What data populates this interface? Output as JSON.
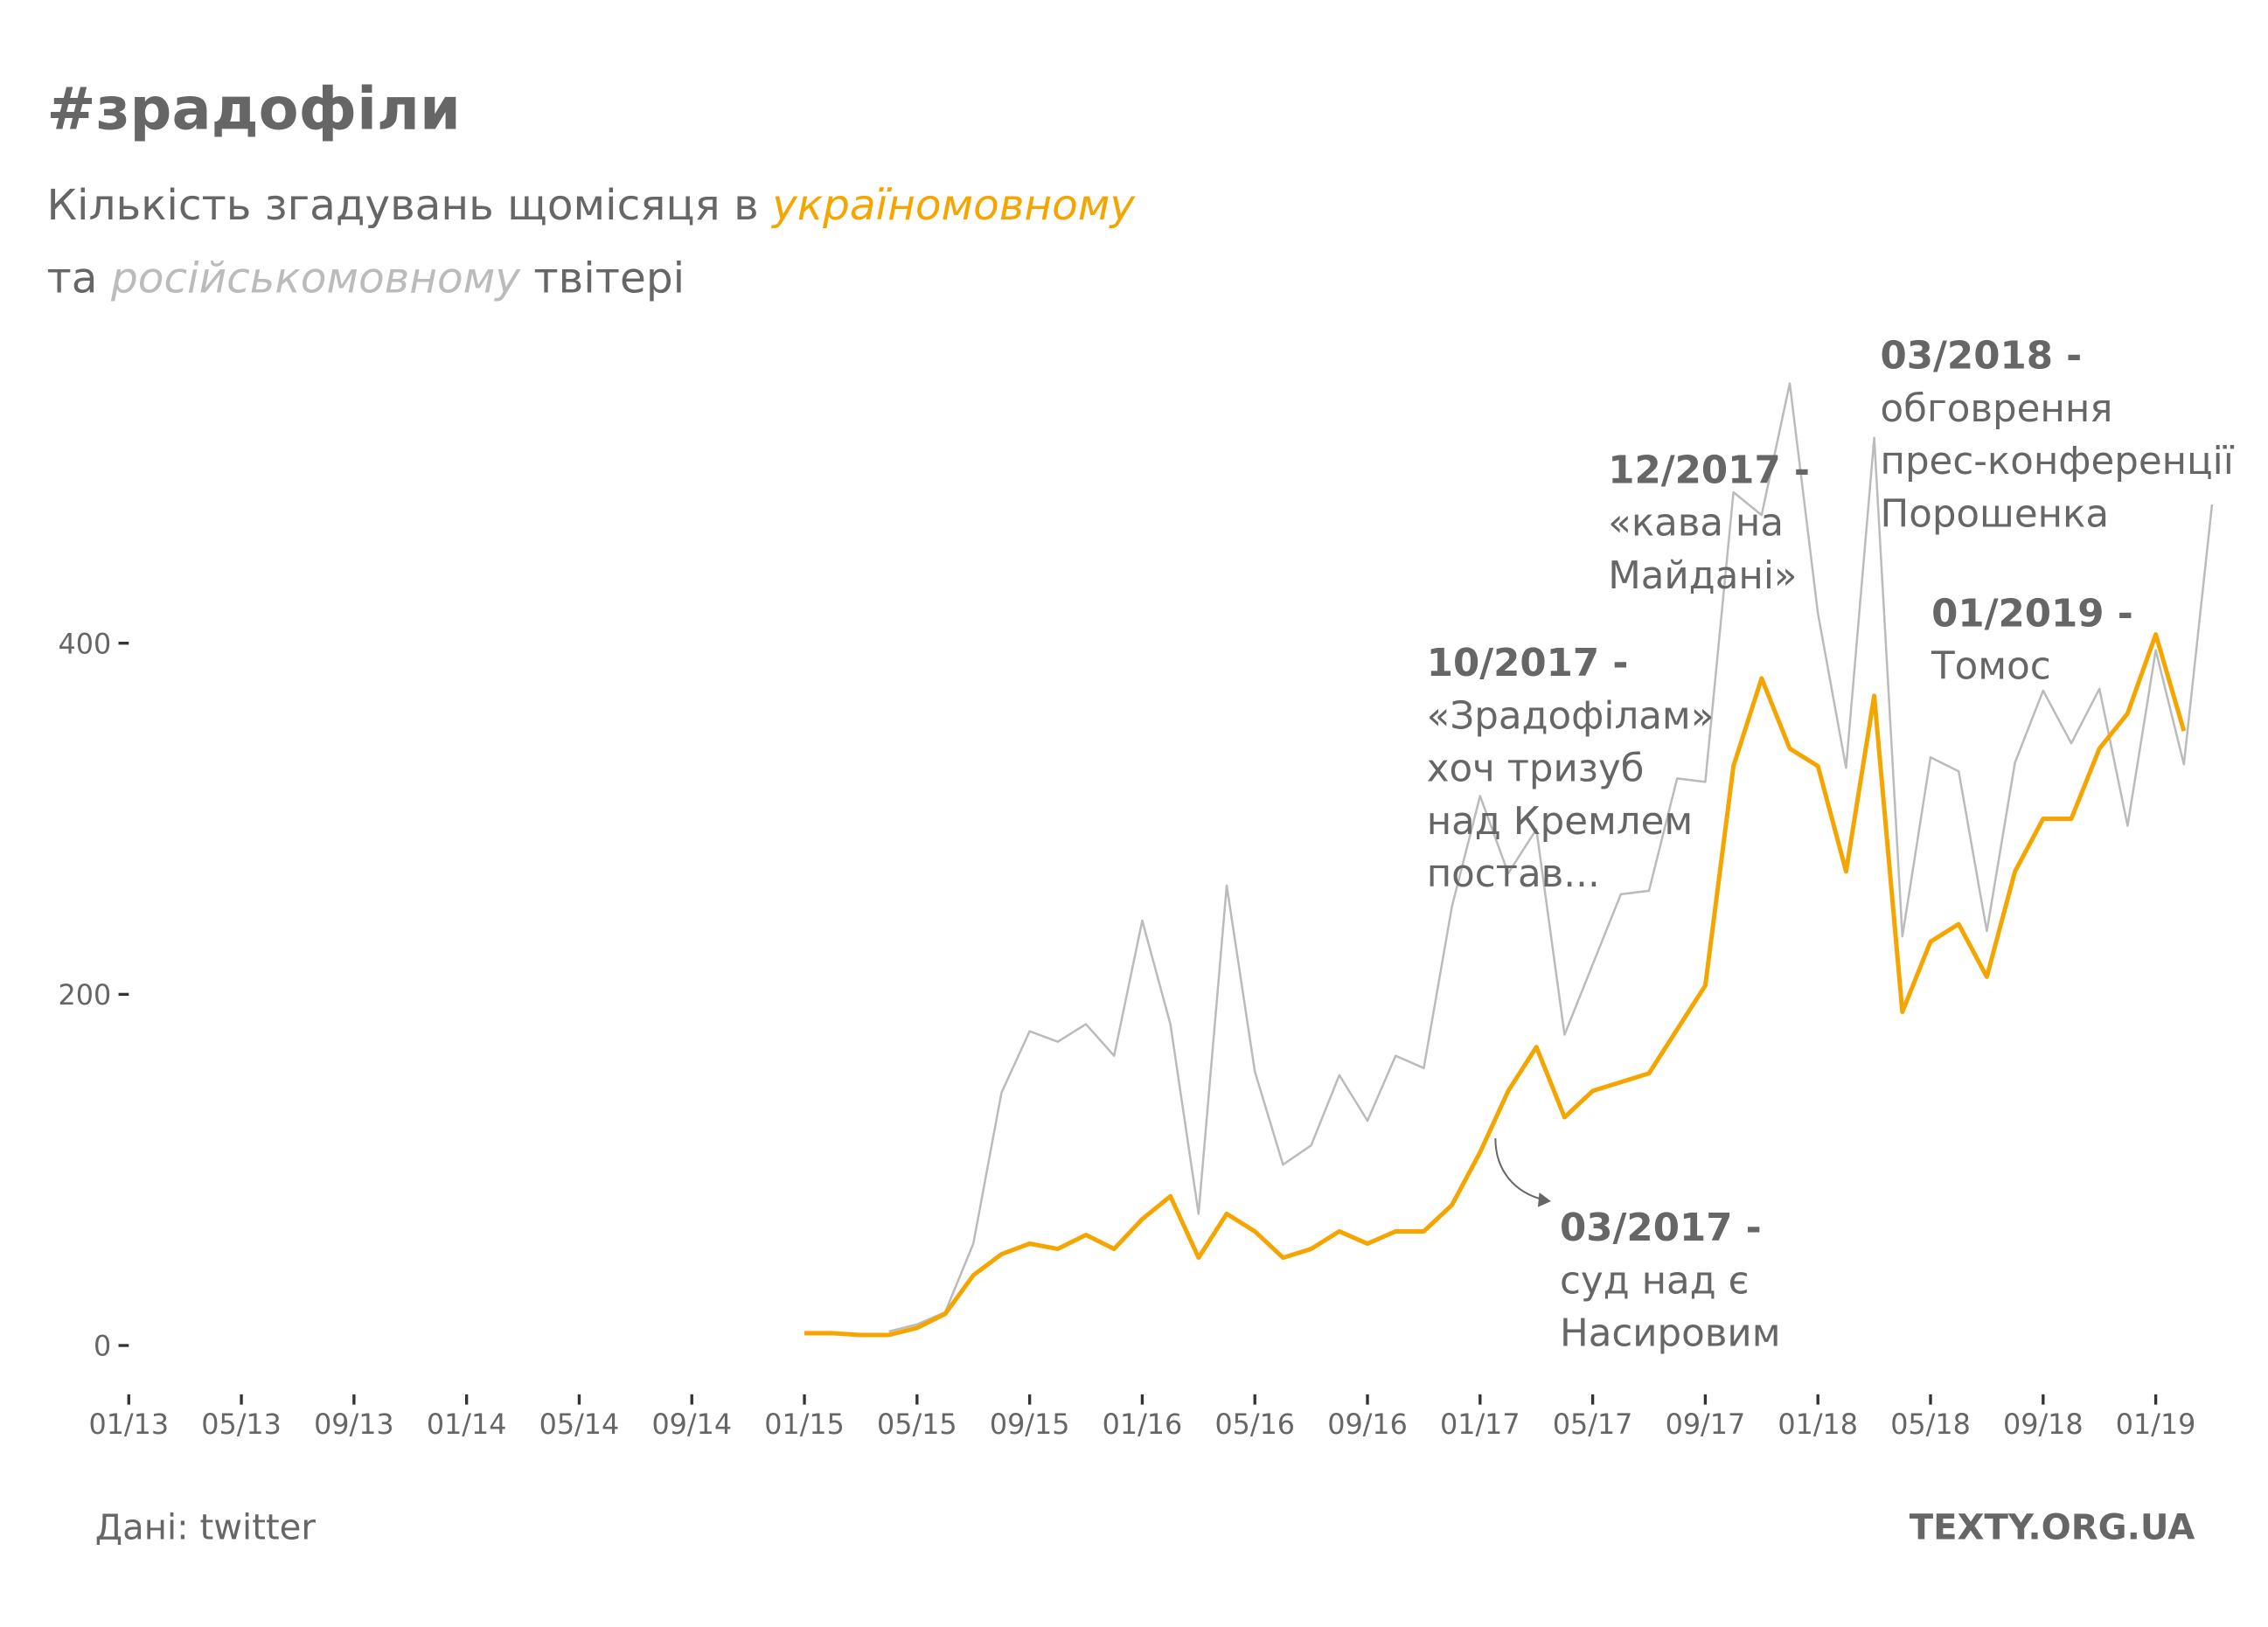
{
  "chart_data": {
    "type": "line",
    "title": "#зрадофіли",
    "subtitle": {
      "start": "Кількість згадувань щомісяця в",
      "middle": "та",
      "end": "твітері"
    },
    "categories": [
      "01/13",
      null,
      null,
      null,
      "05/13",
      null,
      null,
      null,
      "09/13",
      null,
      null,
      null,
      "01/14",
      null,
      null,
      null,
      "05/14",
      null,
      null,
      null,
      "09/14",
      null,
      null,
      null,
      "01/15",
      null,
      null,
      null,
      "05/15",
      null,
      null,
      null,
      "09/15",
      null,
      null,
      null,
      "01/16",
      null,
      null,
      null,
      "05/16",
      null,
      null,
      null,
      "09/16",
      null,
      null,
      null,
      "01/17",
      null,
      null,
      null,
      "05/17",
      null,
      null,
      null,
      "09/17",
      null,
      null,
      null,
      "01/18",
      null,
      null,
      null,
      "05/18",
      null,
      null,
      null,
      "09/18",
      null,
      null,
      null,
      "01/19",
      null,
      null
    ],
    "series": [
      {
        "name": "україномовному",
        "color": "#f5a500",
        "values": [
          null,
          null,
          null,
          null,
          null,
          null,
          null,
          null,
          null,
          null,
          null,
          null,
          null,
          null,
          null,
          null,
          null,
          null,
          null,
          null,
          null,
          null,
          null,
          null,
          7,
          7,
          6,
          6,
          10,
          18,
          40,
          52,
          58,
          55,
          63,
          55,
          72,
          85,
          50,
          75,
          65,
          50,
          55,
          65,
          58,
          65,
          65,
          80,
          110,
          145,
          170,
          130,
          145,
          150,
          155,
          180,
          205,
          330,
          380,
          340,
          330,
          270,
          370,
          190,
          230,
          240,
          210,
          270,
          300,
          300,
          340,
          360,
          405,
          350,
          null
        ]
      },
      {
        "name": "російськомовному",
        "color": "#bbbbbb",
        "values": [
          null,
          null,
          null,
          null,
          null,
          null,
          null,
          null,
          null,
          null,
          null,
          null,
          null,
          null,
          null,
          null,
          null,
          null,
          null,
          null,
          null,
          null,
          null,
          null,
          null,
          null,
          null,
          8,
          12,
          19,
          58,
          144,
          179,
          173,
          183,
          165,
          242,
          183,
          75,
          262,
          156,
          103,
          114,
          154,
          128,
          165,
          158,
          250,
          313,
          269,
          294,
          177,
          217,
          257,
          259,
          323,
          321,
          486,
          473,
          548,
          417,
          329,
          517,
          233,
          335,
          327,
          236,
          332,
          373,
          343,
          374,
          296,
          396,
          331,
          479
        ]
      }
    ],
    "ylim": [
      -17,
      558
    ],
    "yticks": [
      0,
      200,
      400
    ],
    "annotations": [
      {
        "title": "10/2017 -",
        "lines": [
          "«Зрадофілам»",
          "хоч тризуб",
          "над Кремлем",
          "постав..."
        ]
      },
      {
        "title": "12/2017 -",
        "lines": [
          "«кава на",
          "Майдані»"
        ]
      },
      {
        "title": "03/2018 -",
        "lines": [
          "обговрення",
          "прес-конференції",
          "Порошенка"
        ]
      },
      {
        "title": "01/2019 -",
        "lines": [
          "Томос"
        ]
      },
      {
        "title": "03/2017 -",
        "lines": [
          "суд над є",
          "Насировим"
        ]
      }
    ],
    "source": "Дані: twitter",
    "brand": "TEXTY.ORG.UA"
  }
}
